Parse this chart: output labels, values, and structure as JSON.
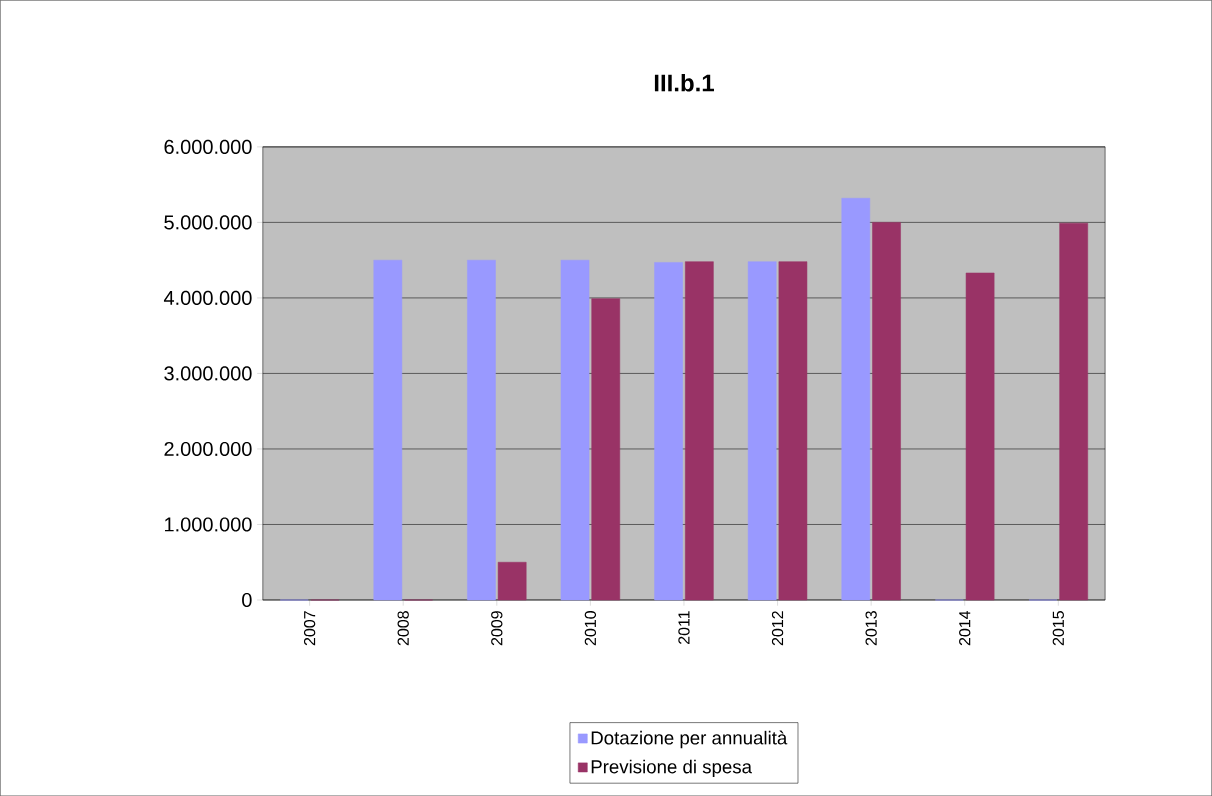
{
  "chart_data": {
    "type": "bar",
    "title": "III.b.1",
    "categories": [
      "2007",
      "2008",
      "2009",
      "2010",
      "2011",
      "2012",
      "2013",
      "2014",
      "2015"
    ],
    "series": [
      {
        "name": "Dotazione per annualità",
        "color": "#9999ff",
        "values": [
          0,
          4500000,
          4500000,
          4500000,
          4470000,
          4480000,
          5320000,
          0,
          0
        ]
      },
      {
        "name": "Previsione di spesa",
        "color": "#993366",
        "values": [
          0,
          0,
          500000,
          3990000,
          4480000,
          4480000,
          5000000,
          4330000,
          4990000
        ]
      }
    ],
    "ylim": [
      0,
      6000000
    ],
    "yticks": [
      {
        "value": 0,
        "label": "0"
      },
      {
        "value": 1000000,
        "label": "1.000.000"
      },
      {
        "value": 2000000,
        "label": "2.000.000"
      },
      {
        "value": 3000000,
        "label": "3.000.000"
      },
      {
        "value": 4000000,
        "label": "4.000.000"
      },
      {
        "value": 5000000,
        "label": "5.000.000"
      },
      {
        "value": 6000000,
        "label": "6.000.000"
      }
    ],
    "grid": "y",
    "legend": "bottom"
  }
}
